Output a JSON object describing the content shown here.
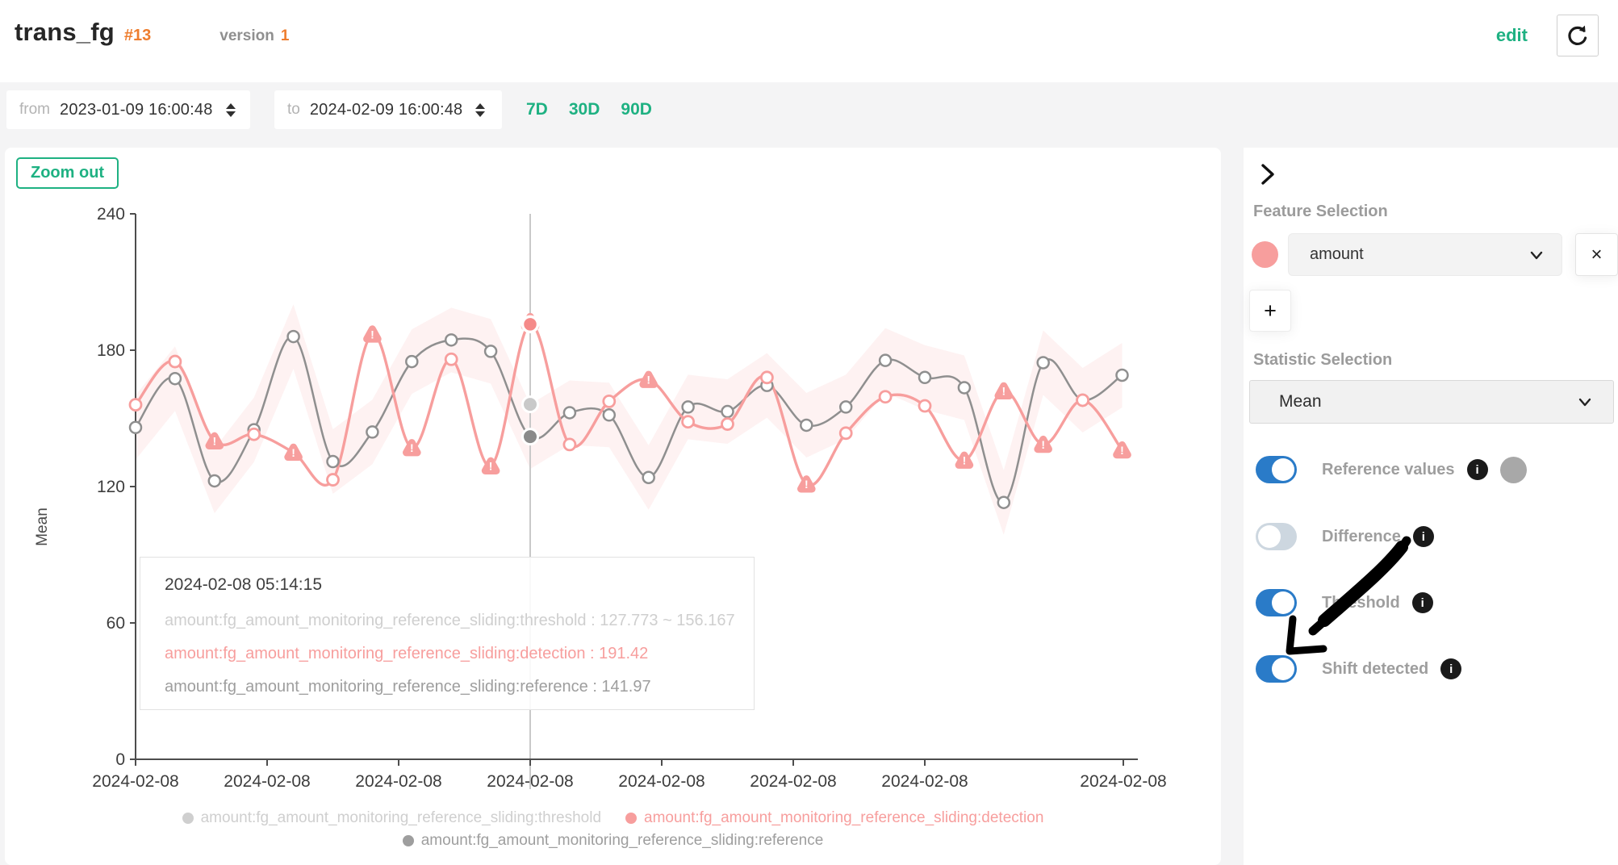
{
  "header": {
    "title": "trans_fg",
    "badge": "#13",
    "version_label": "version",
    "version_value": "1",
    "edit_label": "edit"
  },
  "filters": {
    "from_label": "from",
    "from_value": "2023-01-09 16:00:48",
    "to_label": "to",
    "to_value": "2024-02-09 16:00:48",
    "range_7d": "7D",
    "range_30d": "30D",
    "range_90d": "90D"
  },
  "chart": {
    "zoom_out_label": "Zoom out",
    "tooltip": {
      "title": "2024-02-08 05:14:15",
      "rows": [
        {
          "text": "amount:fg_amount_monitoring_reference_sliding:threshold : 127.773 ~ 156.167",
          "color": "#cfcfcf"
        },
        {
          "text": "amount:fg_amount_monitoring_reference_sliding:detection : 191.42",
          "color": "#f79e9d"
        },
        {
          "text": "amount:fg_amount_monitoring_reference_sliding:reference : 141.97",
          "color": "#9e9e9e"
        }
      ]
    },
    "legend": {
      "items": [
        {
          "label": "amount:fg_amount_monitoring_reference_sliding:threshold",
          "color": "#cfcfcf"
        },
        {
          "label": "amount:fg_amount_monitoring_reference_sliding:detection",
          "color": "#f79e9d"
        },
        {
          "label": "amount:fg_amount_monitoring_reference_sliding:reference",
          "color": "#9e9e9e"
        }
      ]
    },
    "chart_data": {
      "type": "line",
      "ylabel": "Mean",
      "ylim": [
        0,
        240
      ],
      "y_ticks": [
        0,
        60,
        120,
        180,
        240
      ],
      "x_tick_labels": [
        "2024-02-08",
        "2024-02-08",
        "2024-02-08",
        "2024-02-08",
        "2024-02-08",
        "2024-02-08",
        "2024-02-08",
        "2024-02-08"
      ],
      "series": [
        {
          "name": "amount:fg_amount_monitoring_reference_sliding:detection",
          "type": "line",
          "color": "#f79e9d",
          "values": [
            156,
            175,
            140,
            143,
            135,
            123,
            187,
            137,
            176,
            129,
            191.42,
            138.5,
            157.5,
            167,
            148.5,
            147.5,
            168,
            121,
            143.5,
            159.5,
            155.5,
            131.5,
            162,
            138.5,
            158,
            136
          ],
          "shift_warning_indices": [
            2,
            4,
            6,
            7,
            9,
            10,
            13,
            17,
            21,
            22,
            23,
            25
          ]
        },
        {
          "name": "amount:fg_amount_monitoring_reference_sliding:reference",
          "type": "line",
          "color": "#8f8f8f",
          "values": [
            146,
            167.5,
            122.5,
            145,
            186,
            131,
            144,
            175,
            184.5,
            179.5,
            141.97,
            152.5,
            151.5,
            124,
            155,
            153,
            164.5,
            147,
            155,
            175.5,
            168,
            163.5,
            113,
            174.5,
            158,
            169
          ]
        },
        {
          "name": "amount:fg_amount_monitoring_reference_sliding:threshold",
          "type": "band",
          "around": "reference",
          "delta": 14.2,
          "color": "#f7b4b2",
          "fill_opacity": 0.17
        }
      ],
      "highlight": {
        "index": 10,
        "detection": 191.42,
        "reference": 141.97,
        "threshold_low": 127.773,
        "threshold_high": 156.167,
        "threshold_dot_color": "#c9c9c9",
        "reference_dot_color": "#8a8a8a",
        "detection_dot_color": "#f58a89"
      },
      "legend_position": "bottom",
      "grid": false
    }
  },
  "sidebar": {
    "feature_selection_label": "Feature Selection",
    "feature": {
      "name": "amount",
      "color": "#f79e9d",
      "remove_label": "×"
    },
    "add_label": "+",
    "statistic_selection_label": "Statistic Selection",
    "statistic_value": "Mean",
    "toggles": [
      {
        "label": "Reference values",
        "state": "on",
        "dot_color": "#a8a8a8"
      },
      {
        "label": "Difference",
        "state": "off"
      },
      {
        "label": "Threshold",
        "state": "on"
      },
      {
        "label": "Shift detected",
        "state": "on"
      }
    ]
  },
  "colors": {
    "accent_green": "#1eb182",
    "accent_orange": "#ee7d2e",
    "toggle_blue": "#2a7bc8",
    "crosshair": "#c9c9c9",
    "axis": "#4d4d4d"
  }
}
